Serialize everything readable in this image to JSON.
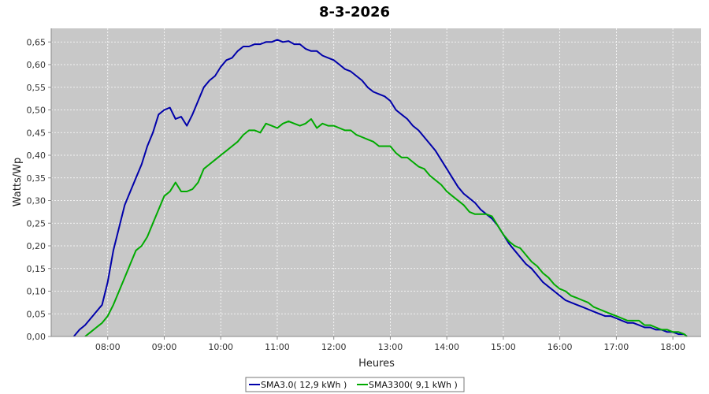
{
  "chart_data": {
    "type": "line",
    "title": "8-3-2026",
    "xlabel": "Heures",
    "ylabel": "Watts/Wp",
    "x_unit": "hours",
    "xlim": [
      7.0,
      18.5
    ],
    "ylim": [
      0,
      0.68
    ],
    "x_ticks": [
      {
        "value": 8,
        "label": "08:00"
      },
      {
        "value": 9,
        "label": "09:00"
      },
      {
        "value": 10,
        "label": "10:00"
      },
      {
        "value": 11,
        "label": "11:00"
      },
      {
        "value": 12,
        "label": "12:00"
      },
      {
        "value": 13,
        "label": "13:00"
      },
      {
        "value": 14,
        "label": "14:00"
      },
      {
        "value": 15,
        "label": "15:00"
      },
      {
        "value": 16,
        "label": "16:00"
      },
      {
        "value": 17,
        "label": "17:00"
      },
      {
        "value": 18,
        "label": "18:00"
      }
    ],
    "y_ticks": [
      {
        "value": 0.0,
        "label": "0,00"
      },
      {
        "value": 0.05,
        "label": "0,05"
      },
      {
        "value": 0.1,
        "label": "0,10"
      },
      {
        "value": 0.15,
        "label": "0,15"
      },
      {
        "value": 0.2,
        "label": "0,20"
      },
      {
        "value": 0.25,
        "label": "0,25"
      },
      {
        "value": 0.3,
        "label": "0,30"
      },
      {
        "value": 0.35,
        "label": "0,35"
      },
      {
        "value": 0.4,
        "label": "0,40"
      },
      {
        "value": 0.45,
        "label": "0,45"
      },
      {
        "value": 0.5,
        "label": "0,50"
      },
      {
        "value": 0.55,
        "label": "0,55"
      },
      {
        "value": 0.6,
        "label": "0,60"
      },
      {
        "value": 0.65,
        "label": "0,65"
      }
    ],
    "grid": true,
    "legend_position": "bottom",
    "plot_background": "#c8c8c8",
    "series": [
      {
        "name": "SMA3.0( 12,9 kWh )",
        "color": "#0000aa",
        "points": [
          [
            7.4,
            0.0
          ],
          [
            7.5,
            0.015
          ],
          [
            7.6,
            0.025
          ],
          [
            7.7,
            0.04
          ],
          [
            7.8,
            0.055
          ],
          [
            7.9,
            0.07
          ],
          [
            8.0,
            0.12
          ],
          [
            8.1,
            0.19
          ],
          [
            8.2,
            0.24
          ],
          [
            8.3,
            0.29
          ],
          [
            8.4,
            0.32
          ],
          [
            8.5,
            0.35
          ],
          [
            8.6,
            0.38
          ],
          [
            8.7,
            0.42
          ],
          [
            8.8,
            0.45
          ],
          [
            8.9,
            0.49
          ],
          [
            9.0,
            0.5
          ],
          [
            9.1,
            0.505
          ],
          [
            9.2,
            0.48
          ],
          [
            9.3,
            0.485
          ],
          [
            9.4,
            0.465
          ],
          [
            9.5,
            0.49
          ],
          [
            9.6,
            0.52
          ],
          [
            9.7,
            0.55
          ],
          [
            9.8,
            0.565
          ],
          [
            9.9,
            0.575
          ],
          [
            10.0,
            0.595
          ],
          [
            10.1,
            0.61
          ],
          [
            10.2,
            0.615
          ],
          [
            10.3,
            0.63
          ],
          [
            10.4,
            0.64
          ],
          [
            10.5,
            0.64
          ],
          [
            10.6,
            0.645
          ],
          [
            10.7,
            0.645
          ],
          [
            10.8,
            0.65
          ],
          [
            10.9,
            0.65
          ],
          [
            11.0,
            0.655
          ],
          [
            11.1,
            0.65
          ],
          [
            11.2,
            0.652
          ],
          [
            11.3,
            0.645
          ],
          [
            11.4,
            0.645
          ],
          [
            11.5,
            0.635
          ],
          [
            11.6,
            0.63
          ],
          [
            11.7,
            0.63
          ],
          [
            11.8,
            0.62
          ],
          [
            11.9,
            0.615
          ],
          [
            12.0,
            0.61
          ],
          [
            12.1,
            0.6
          ],
          [
            12.2,
            0.59
          ],
          [
            12.3,
            0.585
          ],
          [
            12.4,
            0.575
          ],
          [
            12.5,
            0.565
          ],
          [
            12.6,
            0.55
          ],
          [
            12.7,
            0.54
          ],
          [
            12.8,
            0.535
          ],
          [
            12.9,
            0.53
          ],
          [
            13.0,
            0.52
          ],
          [
            13.1,
            0.5
          ],
          [
            13.2,
            0.49
          ],
          [
            13.3,
            0.48
          ],
          [
            13.4,
            0.465
          ],
          [
            13.5,
            0.455
          ],
          [
            13.6,
            0.44
          ],
          [
            13.7,
            0.425
          ],
          [
            13.8,
            0.41
          ],
          [
            13.9,
            0.39
          ],
          [
            14.0,
            0.37
          ],
          [
            14.1,
            0.35
          ],
          [
            14.2,
            0.33
          ],
          [
            14.3,
            0.315
          ],
          [
            14.4,
            0.305
          ],
          [
            14.5,
            0.295
          ],
          [
            14.6,
            0.28
          ],
          [
            14.7,
            0.27
          ],
          [
            14.8,
            0.26
          ],
          [
            14.9,
            0.245
          ],
          [
            15.0,
            0.225
          ],
          [
            15.1,
            0.205
          ],
          [
            15.2,
            0.19
          ],
          [
            15.3,
            0.175
          ],
          [
            15.4,
            0.16
          ],
          [
            15.5,
            0.15
          ],
          [
            15.6,
            0.135
          ],
          [
            15.7,
            0.12
          ],
          [
            15.8,
            0.11
          ],
          [
            15.9,
            0.1
          ],
          [
            16.0,
            0.09
          ],
          [
            16.1,
            0.08
          ],
          [
            16.2,
            0.075
          ],
          [
            16.3,
            0.07
          ],
          [
            16.4,
            0.065
          ],
          [
            16.5,
            0.06
          ],
          [
            16.6,
            0.055
          ],
          [
            16.7,
            0.05
          ],
          [
            16.8,
            0.045
          ],
          [
            16.9,
            0.045
          ],
          [
            17.0,
            0.04
          ],
          [
            17.1,
            0.035
          ],
          [
            17.2,
            0.03
          ],
          [
            17.3,
            0.03
          ],
          [
            17.4,
            0.025
          ],
          [
            17.5,
            0.02
          ],
          [
            17.6,
            0.02
          ],
          [
            17.7,
            0.015
          ],
          [
            17.8,
            0.015
          ],
          [
            17.9,
            0.01
          ],
          [
            18.0,
            0.01
          ],
          [
            18.1,
            0.005
          ],
          [
            18.2,
            0.005
          ],
          [
            18.25,
            0.0
          ]
        ]
      },
      {
        "name": "SMA3300( 9,1 kWh )",
        "color": "#00aa00",
        "points": [
          [
            7.6,
            0.0
          ],
          [
            7.7,
            0.01
          ],
          [
            7.8,
            0.02
          ],
          [
            7.9,
            0.03
          ],
          [
            8.0,
            0.045
          ],
          [
            8.1,
            0.07
          ],
          [
            8.2,
            0.1
          ],
          [
            8.3,
            0.13
          ],
          [
            8.4,
            0.16
          ],
          [
            8.5,
            0.19
          ],
          [
            8.6,
            0.2
          ],
          [
            8.7,
            0.22
          ],
          [
            8.8,
            0.25
          ],
          [
            8.9,
            0.28
          ],
          [
            9.0,
            0.31
          ],
          [
            9.1,
            0.32
          ],
          [
            9.2,
            0.34
          ],
          [
            9.3,
            0.32
          ],
          [
            9.4,
            0.32
          ],
          [
            9.5,
            0.325
          ],
          [
            9.6,
            0.34
          ],
          [
            9.7,
            0.37
          ],
          [
            9.8,
            0.38
          ],
          [
            9.9,
            0.39
          ],
          [
            10.0,
            0.4
          ],
          [
            10.1,
            0.41
          ],
          [
            10.2,
            0.42
          ],
          [
            10.3,
            0.43
          ],
          [
            10.4,
            0.445
          ],
          [
            10.5,
            0.455
          ],
          [
            10.6,
            0.455
          ],
          [
            10.7,
            0.45
          ],
          [
            10.8,
            0.47
          ],
          [
            10.9,
            0.465
          ],
          [
            11.0,
            0.46
          ],
          [
            11.1,
            0.47
          ],
          [
            11.2,
            0.475
          ],
          [
            11.3,
            0.47
          ],
          [
            11.4,
            0.465
          ],
          [
            11.5,
            0.47
          ],
          [
            11.6,
            0.48
          ],
          [
            11.7,
            0.46
          ],
          [
            11.8,
            0.47
          ],
          [
            11.9,
            0.465
          ],
          [
            12.0,
            0.465
          ],
          [
            12.1,
            0.46
          ],
          [
            12.2,
            0.455
          ],
          [
            12.3,
            0.455
          ],
          [
            12.4,
            0.445
          ],
          [
            12.5,
            0.44
          ],
          [
            12.6,
            0.435
          ],
          [
            12.7,
            0.43
          ],
          [
            12.8,
            0.42
          ],
          [
            12.9,
            0.42
          ],
          [
            13.0,
            0.42
          ],
          [
            13.1,
            0.405
          ],
          [
            13.2,
            0.395
          ],
          [
            13.3,
            0.395
          ],
          [
            13.4,
            0.385
          ],
          [
            13.5,
            0.375
          ],
          [
            13.6,
            0.37
          ],
          [
            13.7,
            0.355
          ],
          [
            13.8,
            0.345
          ],
          [
            13.9,
            0.335
          ],
          [
            14.0,
            0.32
          ],
          [
            14.1,
            0.31
          ],
          [
            14.2,
            0.3
          ],
          [
            14.3,
            0.29
          ],
          [
            14.4,
            0.275
          ],
          [
            14.5,
            0.27
          ],
          [
            14.6,
            0.27
          ],
          [
            14.7,
            0.27
          ],
          [
            14.8,
            0.265
          ],
          [
            14.9,
            0.245
          ],
          [
            15.0,
            0.225
          ],
          [
            15.1,
            0.21
          ],
          [
            15.2,
            0.2
          ],
          [
            15.3,
            0.195
          ],
          [
            15.4,
            0.18
          ],
          [
            15.5,
            0.165
          ],
          [
            15.6,
            0.155
          ],
          [
            15.7,
            0.14
          ],
          [
            15.8,
            0.13
          ],
          [
            15.9,
            0.115
          ],
          [
            16.0,
            0.105
          ],
          [
            16.1,
            0.1
          ],
          [
            16.2,
            0.09
          ],
          [
            16.3,
            0.085
          ],
          [
            16.4,
            0.08
          ],
          [
            16.5,
            0.075
          ],
          [
            16.6,
            0.065
          ],
          [
            16.7,
            0.06
          ],
          [
            16.8,
            0.055
          ],
          [
            16.9,
            0.05
          ],
          [
            17.0,
            0.045
          ],
          [
            17.1,
            0.04
          ],
          [
            17.2,
            0.035
          ],
          [
            17.3,
            0.035
          ],
          [
            17.4,
            0.035
          ],
          [
            17.5,
            0.025
          ],
          [
            17.6,
            0.025
          ],
          [
            17.7,
            0.02
          ],
          [
            17.8,
            0.015
          ],
          [
            17.9,
            0.015
          ],
          [
            18.0,
            0.01
          ],
          [
            18.1,
            0.01
          ],
          [
            18.2,
            0.005
          ],
          [
            18.25,
            0.0
          ]
        ]
      }
    ]
  }
}
